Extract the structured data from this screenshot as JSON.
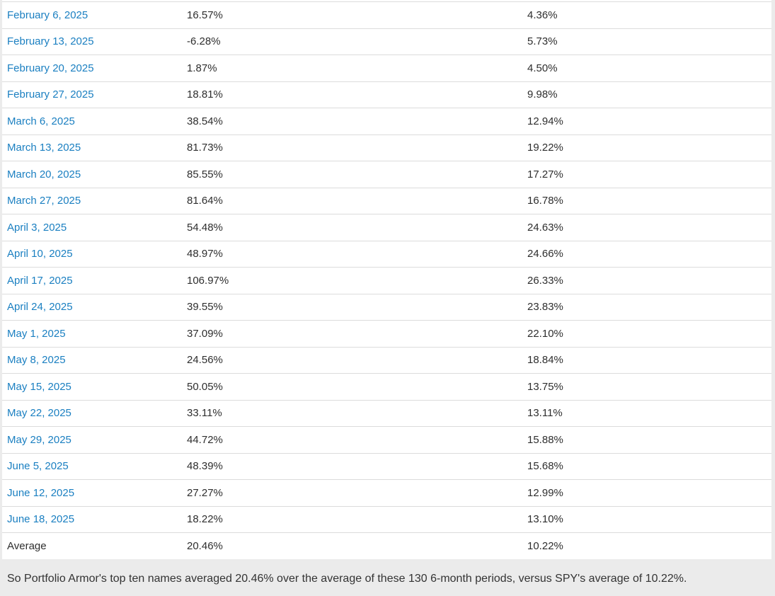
{
  "theme": {
    "page_bg": "#ebebeb",
    "content_bg": "#ffffff",
    "link_color": "#1a7fc1",
    "value_color": "#2e2e2e",
    "border_color": "#dcdcdc",
    "footer_text_color": "#333333"
  },
  "table": {
    "rows": [
      {
        "date": "February 6, 2025",
        "top_ten": "16.57%",
        "spy": "4.36%"
      },
      {
        "date": "February 13, 2025",
        "top_ten": "-6.28%",
        "spy": "5.73%"
      },
      {
        "date": "February 20, 2025",
        "top_ten": "1.87%",
        "spy": "4.50%"
      },
      {
        "date": "February 27, 2025",
        "top_ten": "18.81%",
        "spy": "9.98%"
      },
      {
        "date": "March 6, 2025",
        "top_ten": "38.54%",
        "spy": "12.94%"
      },
      {
        "date": "March 13, 2025",
        "top_ten": "81.73%",
        "spy": "19.22%"
      },
      {
        "date": "March 20, 2025",
        "top_ten": "85.55%",
        "spy": "17.27%"
      },
      {
        "date": "March 27, 2025",
        "top_ten": "81.64%",
        "spy": "16.78%"
      },
      {
        "date": "April 3, 2025",
        "top_ten": "54.48%",
        "spy": "24.63%"
      },
      {
        "date": "April 10, 2025",
        "top_ten": "48.97%",
        "spy": "24.66%"
      },
      {
        "date": "April 17, 2025",
        "top_ten": "106.97%",
        "spy": "26.33%"
      },
      {
        "date": "April 24, 2025",
        "top_ten": "39.55%",
        "spy": "23.83%"
      },
      {
        "date": "May 1, 2025",
        "top_ten": "37.09%",
        "spy": "22.10%"
      },
      {
        "date": "May 8, 2025",
        "top_ten": "24.56%",
        "spy": "18.84%"
      },
      {
        "date": "May 15, 2025",
        "top_ten": "50.05%",
        "spy": "13.75%"
      },
      {
        "date": "May 22, 2025",
        "top_ten": "33.11%",
        "spy": "13.11%"
      },
      {
        "date": "May 29, 2025",
        "top_ten": "44.72%",
        "spy": "15.88%"
      },
      {
        "date": "June 5, 2025",
        "top_ten": "48.39%",
        "spy": "15.68%"
      },
      {
        "date": "June 12, 2025",
        "top_ten": "27.27%",
        "spy": "12.99%"
      },
      {
        "date": "June 18, 2025",
        "top_ten": "18.22%",
        "spy": "13.10%"
      }
    ],
    "average": {
      "label": "Average",
      "top_ten": "20.46%",
      "spy": "10.22%"
    }
  },
  "footer": {
    "text": "So Portfolio Armor's top ten names averaged 20.46% over the average of these 130 6-month periods, versus SPY's average of 10.22%."
  }
}
